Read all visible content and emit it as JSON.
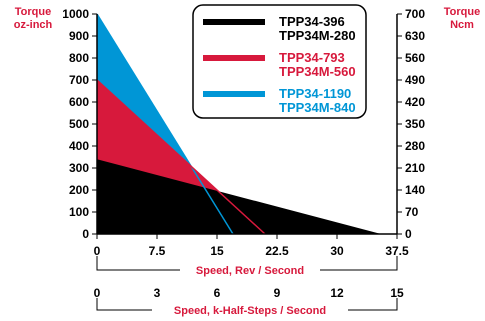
{
  "chart_data": {
    "type": "area",
    "left_axis": {
      "label_line1": "Torque",
      "label_line2": "oz-inch",
      "range": [
        0,
        1000
      ],
      "ticks": [
        "1000",
        "900",
        "800",
        "700",
        "600",
        "500",
        "400",
        "300",
        "200",
        "100",
        "0"
      ]
    },
    "right_axis": {
      "label_line1": "Torque",
      "label_line2": "Ncm",
      "range": [
        0,
        700
      ],
      "ticks": [
        "700",
        "630",
        "560",
        "490",
        "420",
        "350",
        "280",
        "210",
        "140",
        "70",
        "0"
      ]
    },
    "x_axis": {
      "label": "Speed, Rev / Second",
      "range": [
        0,
        37.5
      ],
      "ticks": [
        "0",
        "7.5",
        "15",
        "22.5",
        "30",
        "37.5"
      ]
    },
    "x_axis2": {
      "label": "Speed, k-Half-Steps / Second",
      "range": [
        0,
        15
      ],
      "ticks": [
        "0",
        "3",
        "6",
        "9",
        "12",
        "15"
      ]
    },
    "series": [
      {
        "name": "TPP34-1190",
        "name2": "TPP34M-840",
        "color": "#0096d6",
        "points": [
          [
            0,
            1000
          ],
          [
            17,
            0
          ]
        ]
      },
      {
        "name": "TPP34-793",
        "name2": "TPP34M-560",
        "color": "#d7193c",
        "points": [
          [
            0,
            700
          ],
          [
            21,
            0
          ]
        ]
      },
      {
        "name": "TPP34-396",
        "name2": "TPP34M-280",
        "color": "#000000",
        "points": [
          [
            0,
            340
          ],
          [
            35.5,
            0
          ]
        ]
      }
    ],
    "legend_position": "top-right",
    "grid": false
  }
}
